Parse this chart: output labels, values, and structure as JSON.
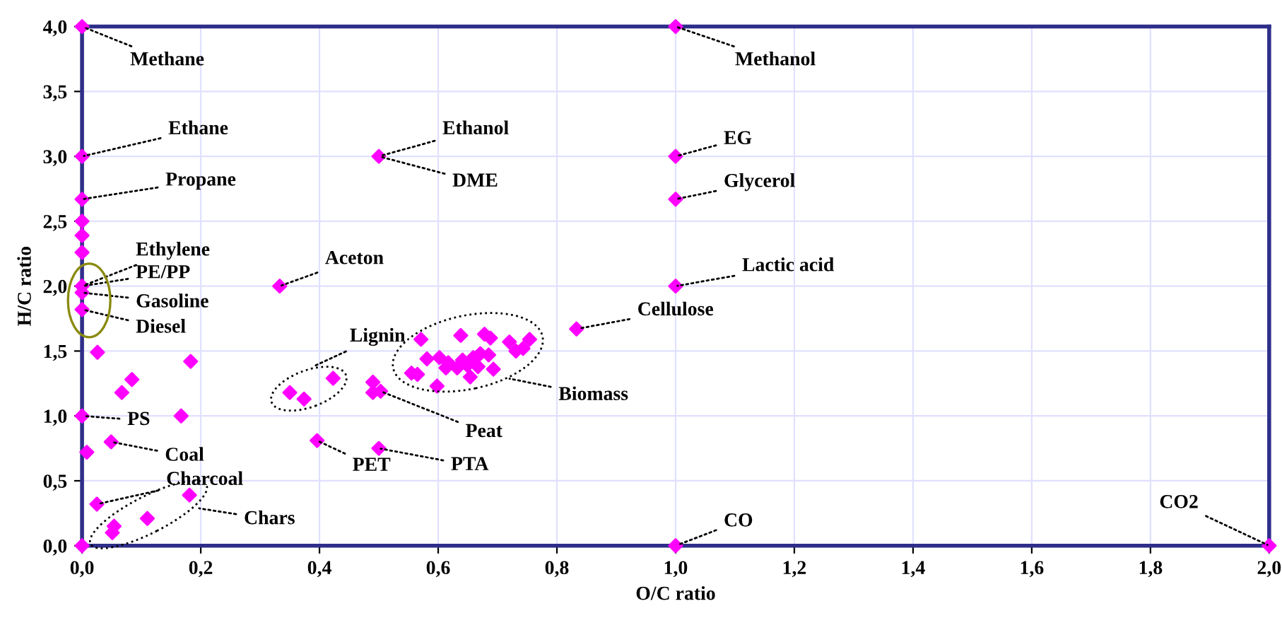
{
  "chart_data": {
    "type": "scatter",
    "xlabel": "O/C ratio",
    "ylabel": "H/C ratio",
    "xlim": [
      0,
      2
    ],
    "ylim": [
      0,
      4
    ],
    "xticks": [
      {
        "value": 0,
        "label": "0,0"
      },
      {
        "value": 0.2,
        "label": "0,2"
      },
      {
        "value": 0.4,
        "label": "0,4"
      },
      {
        "value": 0.6,
        "label": "0,6"
      },
      {
        "value": 0.8,
        "label": "0,8"
      },
      {
        "value": 1,
        "label": "1,0"
      },
      {
        "value": 1.2,
        "label": "1,2"
      },
      {
        "value": 1.4,
        "label": "1,4"
      },
      {
        "value": 1.6,
        "label": "1,6"
      },
      {
        "value": 1.8,
        "label": "1,8"
      },
      {
        "value": 2,
        "label": "2,0"
      }
    ],
    "yticks": [
      {
        "value": 0,
        "label": "0,0"
      },
      {
        "value": 0.5,
        "label": "0,5"
      },
      {
        "value": 1,
        "label": "1,0"
      },
      {
        "value": 1.5,
        "label": "1,5"
      },
      {
        "value": 2,
        "label": "2,0"
      },
      {
        "value": 2.5,
        "label": "2,5"
      },
      {
        "value": 3,
        "label": "3,0"
      },
      {
        "value": 3.5,
        "label": "3,5"
      },
      {
        "value": 4,
        "label": "4,0"
      }
    ],
    "grid": true,
    "marker": "diamond",
    "series": [
      {
        "color": "#ff00ff",
        "x": [
          0,
          0,
          0,
          0,
          0,
          0,
          0,
          0,
          0,
          0.026,
          0.067,
          0.084,
          0.183,
          0,
          0.167,
          0.008,
          0.049,
          0.025,
          0.181,
          0.11,
          0.054,
          0.051,
          0,
          0.333,
          0.35,
          0.374,
          0.423,
          0.49,
          0.503,
          0.49,
          0.396,
          0.5,
          0.5,
          0.833,
          0.571,
          0.638,
          0.678,
          0.688,
          0.72,
          0.754,
          0.743,
          0.731,
          0.581,
          0.602,
          0.617,
          0.641,
          0.659,
          0.671,
          0.685,
          0.649,
          0.613,
          0.632,
          0.667,
          0.693,
          0.555,
          0.565,
          0.654,
          0.598,
          1,
          1,
          1,
          1,
          1,
          2
        ],
        "values": [
          4,
          3,
          2.67,
          2.5,
          2.39,
          2.26,
          2,
          1.95,
          1.82,
          1.49,
          1.18,
          1.28,
          1.42,
          1,
          1,
          0.72,
          0.8,
          0.32,
          0.39,
          0.21,
          0.15,
          0.1,
          0,
          2,
          1.18,
          1.13,
          1.29,
          1.26,
          1.19,
          1.18,
          0.81,
          0.75,
          3,
          1.67,
          1.59,
          1.62,
          1.63,
          1.6,
          1.57,
          1.59,
          1.52,
          1.5,
          1.44,
          1.45,
          1.41,
          1.43,
          1.45,
          1.48,
          1.47,
          1.39,
          1.37,
          1.37,
          1.38,
          1.36,
          1.33,
          1.32,
          1.3,
          1.23,
          4,
          3,
          2.67,
          2,
          0,
          0
        ]
      }
    ],
    "annotations": [
      {
        "text": "Methane",
        "x": 0,
        "y": 4
      },
      {
        "text": "Ethane",
        "x": 0,
        "y": 3
      },
      {
        "text": "Propane",
        "x": 0,
        "y": 2.67
      },
      {
        "text": "Ethylene",
        "x": 0,
        "y": 2
      },
      {
        "text": "PE/PP",
        "x": 0,
        "y": 2
      },
      {
        "text": "Gasoline",
        "x": 0,
        "y": 1.95
      },
      {
        "text": "Diesel",
        "x": 0,
        "y": 1.82
      },
      {
        "text": "PS",
        "x": 0,
        "y": 1
      },
      {
        "text": "Coal",
        "x": 0.049,
        "y": 0.8
      },
      {
        "text": "Charcoal",
        "x": 0.025,
        "y": 0.32
      },
      "Chars",
      {
        "text": "Aceton",
        "x": 0.333,
        "y": 2
      },
      {
        "text": "Ethanol",
        "x": 0.5,
        "y": 3
      },
      {
        "text": "DME",
        "x": 0.5,
        "y": 3
      },
      "Lignin",
      {
        "text": "Peat",
        "x": 0.503,
        "y": 1.19
      },
      {
        "text": "PET",
        "x": 0.396,
        "y": 0.81
      },
      {
        "text": "PTA",
        "x": 0.5,
        "y": 0.75
      },
      "Biomass",
      {
        "text": "Cellulose",
        "x": 0.833,
        "y": 1.67
      },
      {
        "text": "Methanol",
        "x": 1,
        "y": 4
      },
      {
        "text": "EG",
        "x": 1,
        "y": 3
      },
      {
        "text": "Glycerol",
        "x": 1,
        "y": 2.67
      },
      {
        "text": "Lactic acid",
        "x": 1,
        "y": 2
      },
      {
        "text": "CO",
        "x": 1,
        "y": 0
      },
      {
        "text": "CO2",
        "x": 2,
        "y": 0
      }
    ]
  }
}
